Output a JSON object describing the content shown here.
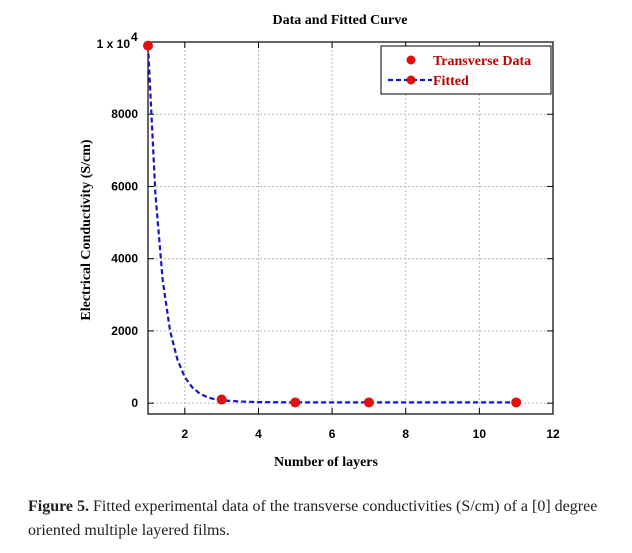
{
  "chart_data": {
    "type": "scatter",
    "title": "Data and Fitted Curve",
    "xlabel": "Number of layers",
    "ylabel": "Electrical Conductivity  (S/cm)",
    "xlim": [
      1,
      12
    ],
    "ylim": [
      -300,
      10000
    ],
    "xticks": [
      2,
      4,
      6,
      8,
      10,
      12
    ],
    "yticks": [
      0,
      2000,
      4000,
      6000,
      8000
    ],
    "ytick_labels": [
      "0",
      "2000",
      "4000",
      "6000",
      "8000"
    ],
    "ytop_label_base": "1 x 10",
    "ytop_label_exp": "4",
    "grid": true,
    "legend_position": "top-right",
    "series": [
      {
        "name": "Transverse Data",
        "kind": "points",
        "color": "#e01010",
        "x": [
          1,
          3,
          5,
          7,
          11
        ],
        "y": [
          9900,
          100,
          20,
          20,
          20
        ]
      },
      {
        "name": "Fitted",
        "kind": "dashed-line",
        "color": "#1414c8",
        "x": [
          1,
          1.2,
          1.4,
          1.6,
          1.8,
          2.0,
          2.2,
          2.4,
          2.6,
          2.8,
          3.0,
          3.5,
          4.0,
          5.0,
          7.0,
          11.0
        ],
        "y": [
          9900,
          5800,
          3400,
          2000,
          1200,
          720,
          440,
          270,
          170,
          110,
          80,
          45,
          30,
          22,
          20,
          20
        ]
      }
    ]
  },
  "caption": {
    "label": "Figure 5.",
    "text": " Fitted experimental data of the transverse conductivities (S/cm) of a [0] degree oriented multiple layered films."
  }
}
